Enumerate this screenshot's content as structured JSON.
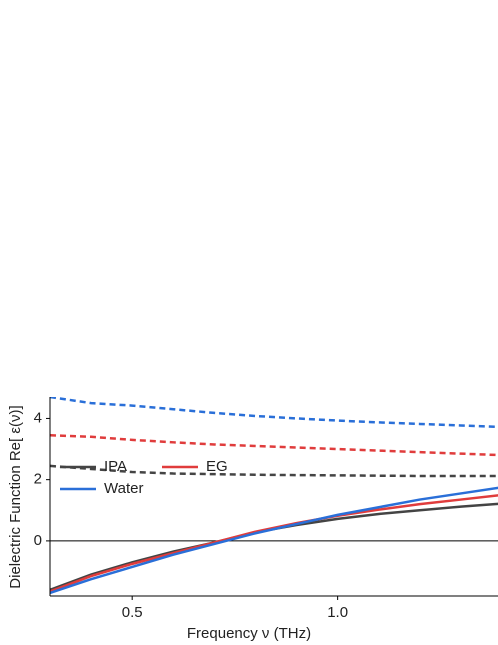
{
  "chart_data": {
    "type": "line",
    "xlabel": "Frequency ν (THz)",
    "ylabel": "Dielectric Function Re[ ε(ν)]",
    "x": [
      0.3,
      0.4,
      0.5,
      0.6,
      0.7,
      0.8,
      0.9,
      1.0,
      1.1,
      1.2,
      1.3,
      1.4
    ],
    "series": [
      {
        "name": "IPA",
        "color": "#444444",
        "dashed": false,
        "values": [
          -1.6,
          -1.1,
          -0.7,
          -0.35,
          -0.05,
          0.28,
          0.52,
          0.72,
          0.88,
          1.0,
          1.12,
          1.22
        ]
      },
      {
        "name": "EG",
        "color": "#e03c3c",
        "dashed": false,
        "values": [
          -1.65,
          -1.15,
          -0.75,
          -0.4,
          -0.05,
          0.3,
          0.58,
          0.82,
          1.02,
          1.2,
          1.35,
          1.5
        ]
      },
      {
        "name": "Water",
        "color": "#2a6fd8",
        "dashed": false,
        "values": [
          -1.7,
          -1.25,
          -0.85,
          -0.45,
          -0.1,
          0.25,
          0.55,
          0.85,
          1.1,
          1.35,
          1.55,
          1.75
        ]
      },
      {
        "color": "#444444",
        "dashed": true,
        "values": [
          2.45,
          2.35,
          2.25,
          2.2,
          2.18,
          2.16,
          2.15,
          2.14,
          2.13,
          2.12,
          2.12,
          2.12
        ]
      },
      {
        "color": "#e03c3c",
        "dashed": true,
        "values": [
          3.45,
          3.4,
          3.3,
          3.22,
          3.15,
          3.1,
          3.05,
          3.0,
          2.95,
          2.9,
          2.85,
          2.8
        ]
      },
      {
        "color": "#2a6fd8",
        "dashed": true,
        "values": [
          4.7,
          4.5,
          4.42,
          4.3,
          4.18,
          4.08,
          4.0,
          3.93,
          3.87,
          3.82,
          3.77,
          3.72
        ]
      }
    ],
    "xlim": [
      0.3,
      1.4
    ],
    "xticks": [
      0.5,
      {
        "value": 1,
        "label": "1.0"
      }
    ],
    "ylim": [
      -1.8,
      4.7
    ],
    "yticks": [
      0,
      2,
      4
    ],
    "zero_line": true,
    "legend": "lower left"
  }
}
